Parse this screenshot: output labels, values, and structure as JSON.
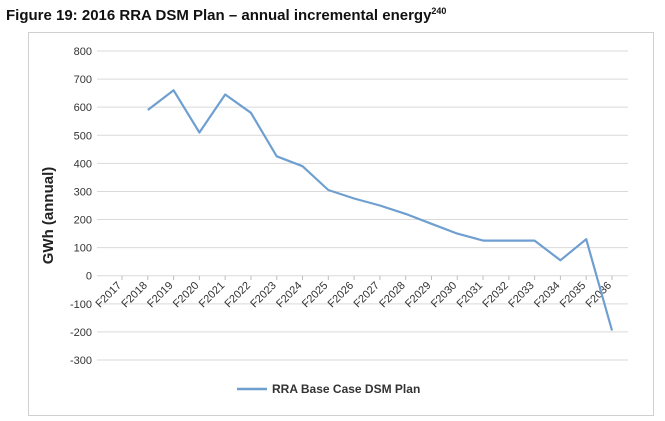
{
  "figure": {
    "title": "Figure 19: 2016 RRA DSM Plan – annual incremental energy",
    "title_sup": "240"
  },
  "chart_data": {
    "type": "line",
    "ylabel": "GWh (annual)",
    "xlabel": "",
    "ylim": [
      -300,
      800
    ],
    "yticks": [
      800,
      700,
      600,
      500,
      400,
      300,
      200,
      100,
      0,
      -100,
      -200,
      -300
    ],
    "grid": true,
    "legend_position": "bottom",
    "categories": [
      "F2017",
      "F2018",
      "F2019",
      "F2020",
      "F2021",
      "F2022",
      "F2023",
      "F2024",
      "F2025",
      "F2026",
      "F2027",
      "F2028",
      "F2029",
      "F2030",
      "F2031",
      "F2032",
      "F2033",
      "F2034",
      "F2035",
      "F2036"
    ],
    "series": [
      {
        "name": "RRA Base Case DSM Plan",
        "color": "#6f9fd0",
        "values": [
          null,
          590,
          660,
          510,
          645,
          580,
          425,
          390,
          305,
          275,
          250,
          220,
          185,
          150,
          125,
          125,
          125,
          55,
          130,
          -195
        ]
      }
    ]
  }
}
